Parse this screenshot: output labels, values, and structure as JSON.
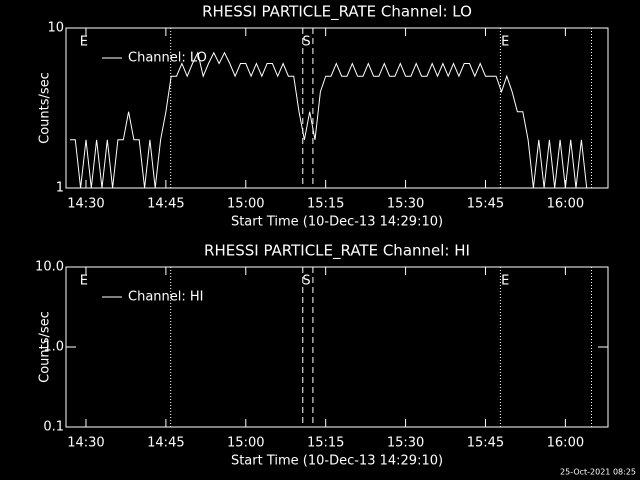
{
  "chart_data": [
    {
      "type": "line",
      "title": "RHESSI PARTICLE_RATE Channel: LO",
      "x_label": "Start Time (10-Dec-13 14:29:10)",
      "y_label": "Counts/sec",
      "log_y": true,
      "legend": "upper left",
      "xlim": [
        26.25,
        128
      ],
      "ylim": [
        1,
        10
      ],
      "xticks": [
        {
          "value": 30,
          "label": "14:30"
        },
        {
          "value": 45,
          "label": "14:45"
        },
        {
          "value": 60,
          "label": "15:00"
        },
        {
          "value": 75,
          "label": "15:15"
        },
        {
          "value": 90,
          "label": "15:30"
        },
        {
          "value": 105,
          "label": "15:45"
        },
        {
          "value": 120,
          "label": "16:00"
        }
      ],
      "yticks": [
        1,
        10
      ],
      "vlines": [
        {
          "x": 45.9,
          "style": "dotted"
        },
        {
          "x": 70.7,
          "style": "dashed"
        },
        {
          "x": 72.6,
          "style": "dashed"
        },
        {
          "x": 107.8,
          "style": "dotted"
        },
        {
          "x": 124.9,
          "style": "dotted"
        }
      ],
      "text_annotations": [
        {
          "x": 29.6,
          "label": "E"
        },
        {
          "x": 71.4,
          "label": "S"
        },
        {
          "x": 108.7,
          "label": "E"
        }
      ],
      "x": [
        27,
        28,
        29,
        30,
        31,
        32,
        33,
        34,
        35,
        36,
        37,
        38,
        39,
        40,
        41,
        42,
        43,
        44,
        45,
        46,
        47,
        48,
        49,
        50,
        51,
        52,
        53,
        54,
        55,
        56,
        57,
        58,
        59,
        60,
        61,
        62,
        63,
        64,
        65,
        66,
        67,
        68,
        69,
        70,
        71,
        72,
        73,
        74,
        75,
        76,
        77,
        78,
        79,
        80,
        81,
        82,
        83,
        84,
        85,
        86,
        87,
        88,
        89,
        90,
        91,
        92,
        93,
        94,
        95,
        96,
        97,
        98,
        99,
        100,
        101,
        102,
        103,
        104,
        105,
        106,
        107,
        108,
        109,
        110,
        111,
        112,
        113,
        114,
        115,
        116,
        117,
        118,
        119,
        120,
        121,
        122,
        123,
        124
      ],
      "series": [
        {
          "name": "Channel: LO",
          "color": "#ffffff",
          "values": [
            2,
            2,
            1,
            2,
            1,
            2,
            1,
            2,
            1,
            2,
            2,
            3,
            2,
            2,
            1,
            2,
            1,
            2,
            3,
            5,
            5,
            6,
            5,
            6,
            7,
            5,
            6,
            7,
            6,
            7,
            6,
            5,
            6,
            6,
            5,
            6,
            5,
            6,
            6,
            5,
            6,
            5,
            5,
            3,
            2,
            3,
            2,
            4,
            5,
            5,
            6,
            5,
            5,
            6,
            5,
            5,
            6,
            5,
            5,
            6,
            5,
            5,
            6,
            5,
            5,
            6,
            5,
            5,
            6,
            5,
            6,
            5,
            6,
            5,
            6,
            6,
            5,
            6,
            5,
            5,
            5,
            4,
            5,
            4,
            3,
            3,
            2,
            1,
            2,
            1,
            2,
            1,
            2,
            1,
            2,
            1,
            2,
            1
          ]
        }
      ]
    },
    {
      "type": "line",
      "title": "RHESSI PARTICLE_RATE Channel: HI",
      "x_label": "Start Time (10-Dec-13 14:29:10)",
      "y_label": "Counts/sec",
      "log_y": true,
      "legend": "upper left",
      "xlim": [
        26.25,
        128
      ],
      "ylim": [
        0.1,
        10
      ],
      "xticks": [
        {
          "value": 30,
          "label": "14:30"
        },
        {
          "value": 45,
          "label": "14:45"
        },
        {
          "value": 60,
          "label": "15:00"
        },
        {
          "value": 75,
          "label": "15:15"
        },
        {
          "value": 90,
          "label": "15:30"
        },
        {
          "value": 105,
          "label": "15:45"
        },
        {
          "value": 120,
          "label": "16:00"
        }
      ],
      "yticks": [
        0.1,
        {
          "value": 1,
          "label": "1.0"
        },
        {
          "value": 10,
          "label": "10.0"
        }
      ],
      "vlines": [
        {
          "x": 45.9,
          "style": "dotted"
        },
        {
          "x": 70.7,
          "style": "dashed"
        },
        {
          "x": 72.6,
          "style": "dashed"
        },
        {
          "x": 107.8,
          "style": "dotted"
        },
        {
          "x": 124.9,
          "style": "dotted"
        }
      ],
      "text_annotations": [
        {
          "x": 29.6,
          "label": "E"
        },
        {
          "x": 71.4,
          "label": "S"
        },
        {
          "x": 108.7,
          "label": "E"
        }
      ],
      "x": [],
      "series": [
        {
          "name": "Channel: HI",
          "color": "#ffffff",
          "values": []
        }
      ]
    }
  ],
  "footer": "25-Oct-2021 08:25"
}
